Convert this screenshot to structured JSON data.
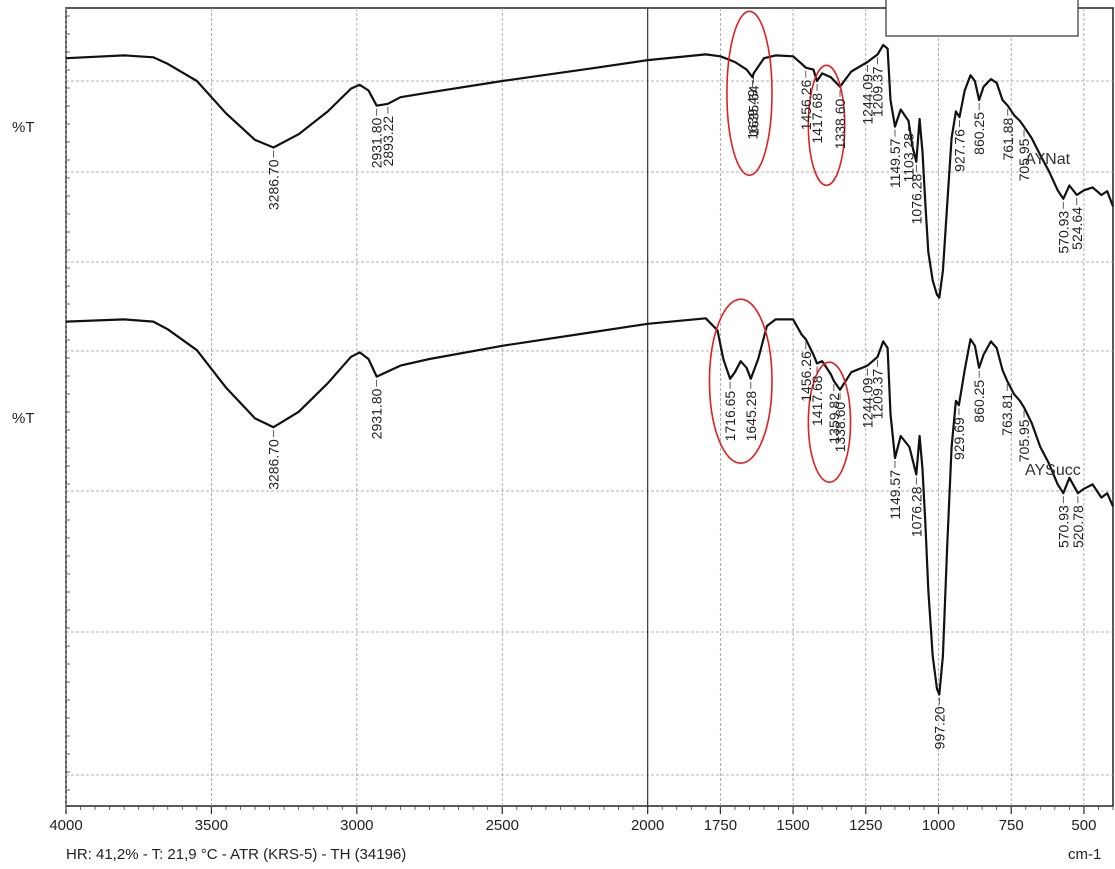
{
  "chart_data": {
    "type": "line",
    "xlabel": "cm-1",
    "ylabel": "%T",
    "xlim": [
      4000,
      400
    ],
    "x_ticks": [
      4000,
      3500,
      3000,
      2500,
      2000,
      1750,
      1500,
      1250,
      1000,
      750,
      500
    ],
    "footer": "HR: 41,2% - T: 21,9 °C - ATR (KRS-5) - TH (34196)",
    "series": [
      {
        "name": "AYNat",
        "ylabel": "%T",
        "points": [
          [
            4000,
            44
          ],
          [
            3800,
            47
          ],
          [
            3700,
            45
          ],
          [
            3650,
            38
          ],
          [
            3550,
            20
          ],
          [
            3450,
            -14
          ],
          [
            3350,
            -42
          ],
          [
            3286.7,
            -50
          ],
          [
            3200,
            -36
          ],
          [
            3100,
            -12
          ],
          [
            3020,
            12
          ],
          [
            2990,
            16
          ],
          [
            2960,
            10
          ],
          [
            2931.8,
            -6
          ],
          [
            2893.22,
            -4
          ],
          [
            2850,
            3
          ],
          [
            2750,
            8
          ],
          [
            2500,
            20
          ],
          [
            2200,
            33
          ],
          [
            2000,
            42
          ],
          [
            1800,
            48
          ],
          [
            1750,
            46
          ],
          [
            1700,
            40
          ],
          [
            1660,
            32
          ],
          [
            1639.49,
            24
          ],
          [
            1635.64,
            28
          ],
          [
            1600,
            44
          ],
          [
            1560,
            47
          ],
          [
            1500,
            46
          ],
          [
            1470,
            38
          ],
          [
            1456.26,
            34
          ],
          [
            1430,
            32
          ],
          [
            1417.68,
            20
          ],
          [
            1400,
            28
          ],
          [
            1370,
            24
          ],
          [
            1338.6,
            14
          ],
          [
            1300,
            30
          ],
          [
            1244.09,
            40
          ],
          [
            1209.37,
            48
          ],
          [
            1190,
            58
          ],
          [
            1175,
            54
          ],
          [
            1165,
            0
          ],
          [
            1149.57,
            -28
          ],
          [
            1130,
            -10
          ],
          [
            1103.28,
            -22
          ],
          [
            1090,
            -48
          ],
          [
            1076.28,
            -65
          ],
          [
            1065,
            -20
          ],
          [
            1055,
            -55
          ],
          [
            1045,
            -110
          ],
          [
            1035,
            -160
          ],
          [
            1020,
            -190
          ],
          [
            1005,
            -205
          ],
          [
            997.2,
            -208
          ],
          [
            985,
            -180
          ],
          [
            970,
            -110
          ],
          [
            955,
            -40
          ],
          [
            940,
            -12
          ],
          [
            927.76,
            -18
          ],
          [
            910,
            10
          ],
          [
            890,
            26
          ],
          [
            875,
            20
          ],
          [
            860.25,
            0
          ],
          [
            845,
            14
          ],
          [
            820,
            22
          ],
          [
            800,
            18
          ],
          [
            780,
            0
          ],
          [
            761.88,
            -6
          ],
          [
            740,
            -16
          ],
          [
            720,
            -22
          ],
          [
            705.95,
            -28
          ],
          [
            680,
            -40
          ],
          [
            650,
            -58
          ],
          [
            620,
            -75
          ],
          [
            590,
            -95
          ],
          [
            570.93,
            -104
          ],
          [
            550,
            -90
          ],
          [
            524.64,
            -100
          ],
          [
            500,
            -95
          ],
          [
            470,
            -92
          ],
          [
            440,
            -100
          ],
          [
            420,
            -96
          ],
          [
            400,
            -112
          ]
        ]
      },
      {
        "name": "AYSucc",
        "ylabel": "%T",
        "points": [
          [
            4000,
            44
          ],
          [
            3800,
            46
          ],
          [
            3700,
            44
          ],
          [
            3650,
            37
          ],
          [
            3550,
            18
          ],
          [
            3450,
            -16
          ],
          [
            3350,
            -44
          ],
          [
            3286.7,
            -52
          ],
          [
            3200,
            -38
          ],
          [
            3100,
            -12
          ],
          [
            3020,
            12
          ],
          [
            2990,
            16
          ],
          [
            2960,
            10
          ],
          [
            2931.8,
            -6
          ],
          [
            2850,
            4
          ],
          [
            2750,
            10
          ],
          [
            2500,
            22
          ],
          [
            2200,
            34
          ],
          [
            2000,
            42
          ],
          [
            1800,
            47
          ],
          [
            1760,
            36
          ],
          [
            1740,
            10
          ],
          [
            1716.65,
            -8
          ],
          [
            1700,
            -2
          ],
          [
            1680,
            8
          ],
          [
            1660,
            2
          ],
          [
            1645.28,
            -8
          ],
          [
            1620,
            10
          ],
          [
            1590,
            40
          ],
          [
            1560,
            46
          ],
          [
            1500,
            46
          ],
          [
            1470,
            32
          ],
          [
            1456.26,
            28
          ],
          [
            1430,
            14
          ],
          [
            1417.68,
            6
          ],
          [
            1400,
            8
          ],
          [
            1370,
            -4
          ],
          [
            1359.82,
            -10
          ],
          [
            1338.6,
            -18
          ],
          [
            1300,
            -2
          ],
          [
            1244.09,
            4
          ],
          [
            1209.37,
            12
          ],
          [
            1190,
            26
          ],
          [
            1175,
            20
          ],
          [
            1165,
            -40
          ],
          [
            1149.57,
            -80
          ],
          [
            1130,
            -60
          ],
          [
            1100,
            -70
          ],
          [
            1076.28,
            -95
          ],
          [
            1065,
            -60
          ],
          [
            1055,
            -90
          ],
          [
            1045,
            -140
          ],
          [
            1035,
            -200
          ],
          [
            1020,
            -260
          ],
          [
            1005,
            -290
          ],
          [
            997.2,
            -295
          ],
          [
            985,
            -260
          ],
          [
            970,
            -160
          ],
          [
            955,
            -70
          ],
          [
            940,
            -28
          ],
          [
            929.69,
            -32
          ],
          [
            910,
            0
          ],
          [
            890,
            28
          ],
          [
            875,
            22
          ],
          [
            860.25,
            2
          ],
          [
            845,
            14
          ],
          [
            820,
            26
          ],
          [
            800,
            20
          ],
          [
            780,
            0
          ],
          [
            763.81,
            -10
          ],
          [
            740,
            -22
          ],
          [
            720,
            -28
          ],
          [
            705.95,
            -34
          ],
          [
            680,
            -48
          ],
          [
            650,
            -70
          ],
          [
            620,
            -85
          ],
          [
            590,
            -104
          ],
          [
            570.93,
            -112
          ],
          [
            550,
            -98
          ],
          [
            520.78,
            -112
          ],
          [
            500,
            -108
          ],
          [
            470,
            -104
          ],
          [
            440,
            -116
          ],
          [
            420,
            -112
          ],
          [
            400,
            -124
          ]
        ]
      }
    ],
    "peak_labels": [
      {
        "series": 0,
        "label": "3286.70"
      },
      {
        "series": 0,
        "label": "2931.80"
      },
      {
        "series": 0,
        "label": "2893.22"
      },
      {
        "series": 0,
        "label": "1639.49"
      },
      {
        "series": 0,
        "label": "1635.64"
      },
      {
        "series": 0,
        "label": "1456.26"
      },
      {
        "series": 0,
        "label": "1417.68"
      },
      {
        "series": 0,
        "label": "1338.60"
      },
      {
        "series": 0,
        "label": "1244.09"
      },
      {
        "series": 0,
        "label": "1209.37"
      },
      {
        "series": 0,
        "label": "1149.57"
      },
      {
        "series": 0,
        "label": "1103.28"
      },
      {
        "series": 0,
        "label": "1076.28"
      },
      {
        "series": 0,
        "label": "927.76"
      },
      {
        "series": 0,
        "label": "860.25"
      },
      {
        "series": 0,
        "label": "761.88"
      },
      {
        "series": 0,
        "label": "705.95"
      },
      {
        "series": 0,
        "label": "570.93"
      },
      {
        "series": 0,
        "label": "524.64"
      },
      {
        "series": 1,
        "label": "3286.70"
      },
      {
        "series": 1,
        "label": "2931.80"
      },
      {
        "series": 1,
        "label": "1716.65"
      },
      {
        "series": 1,
        "label": "1645.28"
      },
      {
        "series": 1,
        "label": "1456.26"
      },
      {
        "series": 1,
        "label": "1417.68"
      },
      {
        "series": 1,
        "label": "1359.82"
      },
      {
        "series": 1,
        "label": "1338.60"
      },
      {
        "series": 1,
        "label": "1244.09"
      },
      {
        "series": 1,
        "label": "1209.37"
      },
      {
        "series": 1,
        "label": "1149.57"
      },
      {
        "series": 1,
        "label": "1076.28"
      },
      {
        "series": 1,
        "label": "997.20"
      },
      {
        "series": 1,
        "label": "929.69"
      },
      {
        "series": 1,
        "label": "860.25"
      },
      {
        "series": 1,
        "label": "763.81"
      },
      {
        "series": 1,
        "label": "705.95"
      },
      {
        "series": 1,
        "label": "570.93"
      },
      {
        "series": 1,
        "label": "520.78"
      }
    ],
    "highlight_regions": [
      {
        "series": 0,
        "from": 1700,
        "to": 1600
      },
      {
        "series": 0,
        "from": 1420,
        "to": 1350
      },
      {
        "series": 1,
        "from": 1760,
        "to": 1600
      },
      {
        "series": 1,
        "from": 1420,
        "to": 1330
      }
    ],
    "highlight_color": "#e02020",
    "line_color": "#111111",
    "grid": true
  }
}
